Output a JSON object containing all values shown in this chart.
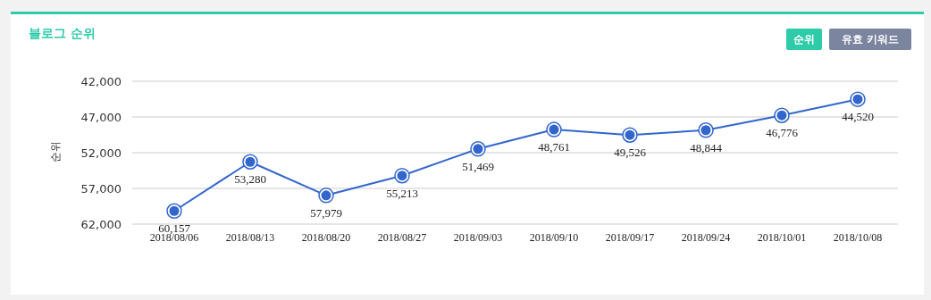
{
  "chart_data": {
    "type": "line",
    "title": "블로그 순위",
    "ylabel": "순위",
    "annotations": [
      "순위",
      "유효 키워드"
    ],
    "categories": [
      "2018/08/06",
      "2018/08/13",
      "2018/08/20",
      "2018/08/27",
      "2018/09/03",
      "2018/09/10",
      "2018/09/17",
      "2018/09/24",
      "2018/10/01",
      "2018/10/08"
    ],
    "series": [
      {
        "color": "#3366cc",
        "values": [
          60157,
          53280,
          57979,
          55213,
          51469,
          48761,
          49526,
          48844,
          46776,
          44520
        ],
        "value_labels": [
          "60,157",
          "53,280",
          "57,979",
          "55,213",
          "51,469",
          "48,761",
          "49,526",
          "48,844",
          "46,776",
          "44,520"
        ]
      }
    ],
    "ylim": [
      62000,
      42000
    ],
    "yticks": [
      {
        "value": 42000,
        "label": "42,000"
      },
      {
        "value": 47000,
        "label": "47,000"
      },
      {
        "value": 52000,
        "label": "52,000"
      },
      {
        "value": 57000,
        "label": "57,000"
      },
      {
        "value": 62000,
        "label": "62,000"
      }
    ],
    "grid": "y",
    "marker": "circle",
    "line_style": "solid"
  }
}
